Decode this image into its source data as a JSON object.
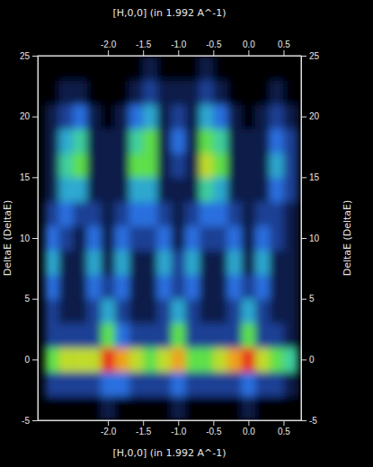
{
  "chart_data": {
    "type": "heatmap",
    "x_label": "[H,0,0] (in 1.992 A^-1)",
    "y_label": "DeltaE (DeltaE)",
    "xlim": [
      -3.0,
      0.75
    ],
    "ylim": [
      -5,
      25
    ],
    "xticks": [
      {
        "value": -2.0,
        "label": "-2.0"
      },
      {
        "value": -1.5,
        "label": "-1.5"
      },
      {
        "value": -1.0,
        "label": "-1.0"
      },
      {
        "value": -0.5,
        "label": "-0.5"
      },
      {
        "value": 0.0,
        "label": "0.0"
      },
      {
        "value": 0.5,
        "label": "0.5"
      }
    ],
    "yticks": [
      -5,
      0,
      5,
      10,
      15,
      20,
      25
    ],
    "x": [
      -2.8,
      -2.6,
      -2.4,
      -2.2,
      -2.0,
      -1.8,
      -1.6,
      -1.4,
      -1.2,
      -1.0,
      -0.8,
      -0.6,
      -0.4,
      -0.2,
      0.0,
      0.2,
      0.4,
      0.6
    ],
    "y": [
      -4,
      -2,
      0,
      2,
      4,
      6,
      8,
      10,
      12,
      14,
      16,
      18,
      20,
      22,
      24
    ],
    "cells": [
      [
        0,
        0,
        0,
        0,
        1,
        0,
        0,
        0,
        0,
        1,
        0,
        0,
        0,
        0,
        1,
        0,
        0,
        0
      ],
      [
        2,
        2,
        2,
        2,
        3,
        3,
        2,
        2,
        2,
        3,
        2,
        2,
        2,
        2,
        3,
        2,
        2,
        1
      ],
      [
        6,
        7,
        7,
        7,
        9,
        8,
        7,
        6,
        7,
        8,
        6,
        6,
        7,
        8,
        9,
        7,
        6,
        5
      ],
      [
        2,
        2,
        2,
        2,
        6,
        3,
        2,
        2,
        2,
        6,
        2,
        2,
        2,
        2,
        6,
        2,
        2,
        1
      ],
      [
        2,
        1,
        1,
        2,
        4,
        2,
        1,
        1,
        2,
        4,
        2,
        1,
        1,
        2,
        4,
        2,
        1,
        1
      ],
      [
        3,
        1,
        1,
        3,
        2,
        3,
        1,
        1,
        3,
        2,
        3,
        1,
        1,
        3,
        2,
        3,
        1,
        1
      ],
      [
        4,
        1,
        1,
        4,
        1,
        4,
        1,
        1,
        4,
        2,
        4,
        1,
        1,
        4,
        1,
        4,
        1,
        1
      ],
      [
        3,
        2,
        1,
        3,
        1,
        3,
        2,
        2,
        3,
        1,
        3,
        2,
        2,
        3,
        1,
        3,
        2,
        1
      ],
      [
        2,
        3,
        2,
        2,
        1,
        2,
        3,
        3,
        2,
        1,
        2,
        3,
        3,
        2,
        1,
        2,
        2,
        1
      ],
      [
        1,
        4,
        4,
        1,
        1,
        1,
        4,
        4,
        1,
        1,
        1,
        5,
        4,
        1,
        1,
        1,
        3,
        2
      ],
      [
        1,
        5,
        6,
        1,
        1,
        1,
        6,
        6,
        1,
        2,
        1,
        7,
        6,
        1,
        1,
        1,
        4,
        2
      ],
      [
        1,
        4,
        5,
        1,
        1,
        1,
        5,
        6,
        1,
        3,
        1,
        6,
        5,
        1,
        1,
        1,
        3,
        2
      ],
      [
        1,
        2,
        3,
        1,
        0,
        1,
        3,
        4,
        1,
        2,
        1,
        4,
        3,
        1,
        0,
        1,
        2,
        1
      ],
      [
        0,
        1,
        1,
        0,
        0,
        0,
        1,
        2,
        1,
        1,
        1,
        2,
        1,
        0,
        0,
        0,
        1,
        0
      ],
      [
        0,
        0,
        0,
        0,
        0,
        0,
        0,
        1,
        0,
        0,
        0,
        1,
        0,
        0,
        0,
        0,
        0,
        0
      ]
    ]
  }
}
